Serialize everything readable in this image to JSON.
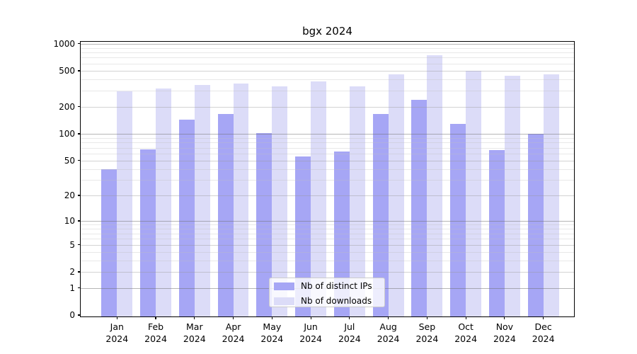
{
  "chart_data": {
    "type": "bar",
    "title": "bgx 2024",
    "categories": [
      "Jan",
      "Feb",
      "Mar",
      "Apr",
      "May",
      "Jun",
      "Jul",
      "Aug",
      "Sep",
      "Oct",
      "Nov",
      "Dec"
    ],
    "category_year": "2024",
    "series": [
      {
        "name": "Nb of distinct IPs",
        "color": "#a6a6f5",
        "values": [
          40,
          67,
          143,
          166,
          101,
          56,
          63,
          166,
          240,
          130,
          66,
          100
        ]
      },
      {
        "name": "Nb of downloads",
        "color": "#dcdcf8",
        "values": [
          295,
          320,
          351,
          360,
          335,
          382,
          337,
          458,
          749,
          500,
          441,
          455
        ]
      }
    ],
    "yscale": "log1p",
    "y_ticks": [
      0,
      1,
      2,
      5,
      10,
      20,
      50,
      100,
      200,
      500,
      1000
    ],
    "y_major_ticks": [
      1,
      10,
      100,
      1000
    ],
    "ylim": [
      0,
      1043
    ],
    "grid": "on",
    "legend_position": "lower-center"
  }
}
